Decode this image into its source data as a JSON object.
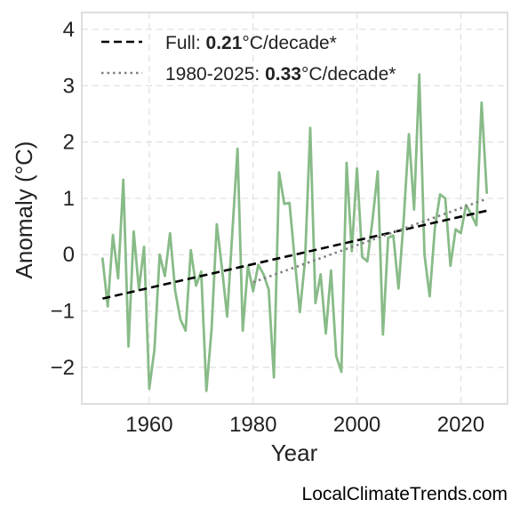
{
  "chart_data": {
    "type": "line",
    "xlabel": "Year",
    "ylabel": "Anomaly (°C)",
    "xlim": [
      1947,
      2029
    ],
    "ylim": [
      -2.65,
      4.3
    ],
    "xticks": [
      1960,
      1980,
      2000,
      2020
    ],
    "yticks": [
      -2,
      -1,
      0,
      1,
      2,
      3,
      4
    ],
    "ytick_labels": [
      "−2",
      "−1",
      "0",
      "1",
      "2",
      "3",
      "4"
    ],
    "grid": true,
    "legend_position": "top-left",
    "series": [
      {
        "color": "#88bb88",
        "x": [
          1951,
          1952,
          1953,
          1954,
          1955,
          1956,
          1957,
          1958,
          1959,
          1960,
          1961,
          1962,
          1963,
          1964,
          1965,
          1966,
          1967,
          1968,
          1969,
          1970,
          1971,
          1972,
          1973,
          1974,
          1975,
          1976,
          1977,
          1978,
          1979,
          1980,
          1981,
          1982,
          1983,
          1984,
          1985,
          1986,
          1987,
          1988,
          1989,
          1990,
          1991,
          1992,
          1993,
          1994,
          1995,
          1996,
          1997,
          1998,
          1999,
          2000,
          2001,
          2002,
          2003,
          2004,
          2005,
          2006,
          2007,
          2008,
          2009,
          2010,
          2011,
          2012,
          2013,
          2014,
          2015,
          2016,
          2017,
          2018,
          2019,
          2020,
          2021,
          2022,
          2023,
          2024,
          2025
        ],
        "values": [
          -0.07,
          -0.92,
          0.35,
          -0.42,
          1.33,
          -1.63,
          0.41,
          -0.62,
          0.14,
          -2.38,
          -1.68,
          0.0,
          -0.38,
          0.38,
          -0.65,
          -1.15,
          -1.35,
          0.08,
          -0.55,
          -0.3,
          -2.42,
          -1.32,
          0.54,
          -0.24,
          -1.1,
          0.4,
          1.88,
          -1.35,
          -0.2,
          -0.65,
          -0.18,
          -0.35,
          -0.62,
          -2.18,
          1.46,
          0.9,
          0.92,
          -0.08,
          -1.02,
          -0.1,
          2.25,
          -0.86,
          -0.35,
          -1.4,
          -0.28,
          -1.8,
          -2.08,
          1.63,
          0.06,
          1.53,
          -0.04,
          -0.12,
          0.62,
          1.48,
          -1.42,
          0.3,
          0.34,
          -0.6,
          0.62,
          2.14,
          0.8,
          3.2,
          0.0,
          -0.74,
          0.47,
          1.07,
          1.0,
          -0.2,
          0.45,
          0.38,
          0.88,
          0.72,
          0.52,
          2.7,
          1.1
        ]
      },
      {
        "name": "Full: 0.21°C/decade*",
        "style": "dashed",
        "color": "#000000",
        "x": [
          1951,
          2025
        ],
        "values": [
          -0.78,
          0.78
        ]
      },
      {
        "name": "1980-2025: 0.33°C/decade*",
        "style": "dotted",
        "color": "#808080",
        "x": [
          1980,
          2025
        ],
        "values": [
          -0.49,
          0.99
        ]
      }
    ],
    "legend": [
      {
        "prefix": "Full: ",
        "bold": "0.21",
        "suffix": "°C/decade*"
      },
      {
        "prefix": "1980-2025: ",
        "bold": "0.33",
        "suffix": "°C/decade*"
      }
    ],
    "annotation": "LocalClimateTrends.com"
  }
}
